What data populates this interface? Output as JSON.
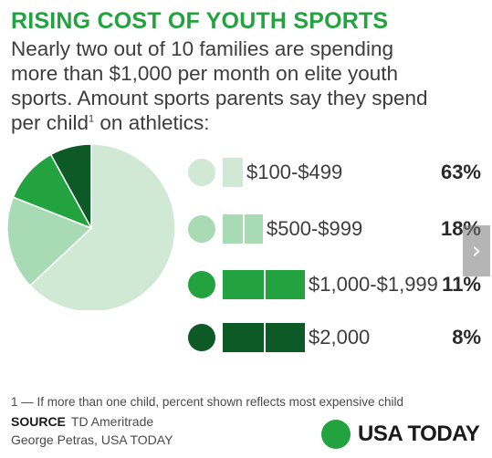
{
  "chart_data": {
    "type": "pie",
    "title": "RISING COST OF YOUTH SPORTS",
    "subtitle_lines": [
      "Nearly two out of 10 families are spending",
      "more than $1,000 per month on elite youth",
      "sports. Amount sports parents say they spend"
    ],
    "subtitle_last_pre": "per child",
    "subtitle_footmark": "1",
    "subtitle_last_post": " on athletics:",
    "categories": [
      "$100-$499",
      "$500-$999",
      "$1,000-$1,999",
      "$2,000"
    ],
    "values": [
      63,
      18,
      11,
      8
    ],
    "value_labels": [
      "63%",
      "18%",
      "11%",
      "8%"
    ],
    "colors": [
      "#cfe9d5",
      "#a8dbb4",
      "#22a33f",
      "#0d5a26"
    ]
  },
  "footnote": "1 — If more than one child, percent shown reflects most expensive child",
  "source_label": "SOURCE",
  "source_value": "TD Ameritrade",
  "credit": "George Petras, USA TODAY",
  "brand": "USA TODAY",
  "nav": {
    "next_icon": "chevron-right-icon",
    "glyph": "›"
  }
}
